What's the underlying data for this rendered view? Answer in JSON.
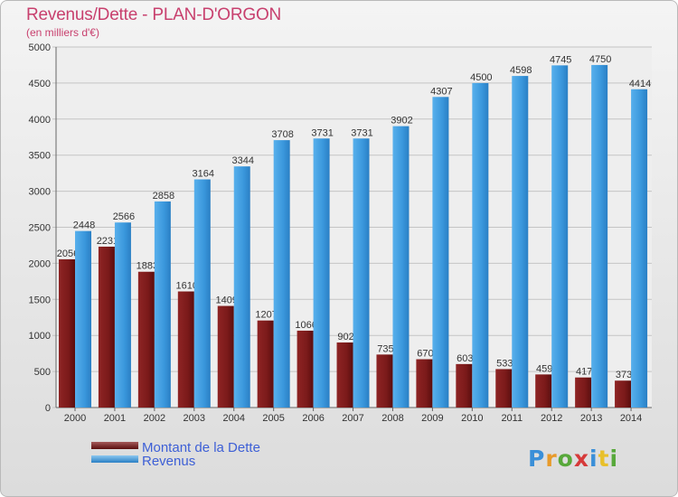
{
  "title": "Revenus/Dette - PLAN-D'ORGON",
  "subtitle": "(en milliers d'€)",
  "logo_text": "Proxiti",
  "colors": {
    "dette": "#7b1a1a",
    "revenus": "#3a97dc",
    "title": "#c8406e",
    "legend_text": "#3d5fd6"
  },
  "chart_data": {
    "type": "bar",
    "categories": [
      "2000",
      "2001",
      "2002",
      "2003",
      "2004",
      "2005",
      "2006",
      "2007",
      "2008",
      "2009",
      "2010",
      "2011",
      "2012",
      "2013",
      "2014"
    ],
    "series": [
      {
        "name": "Montant de la Dette",
        "values": [
          2056,
          2231,
          1883,
          1610,
          1409,
          1207,
          1066,
          902,
          735,
          670,
          603,
          533,
          459,
          417,
          373
        ]
      },
      {
        "name": "Revenus",
        "values": [
          2448,
          2566,
          2858,
          3164,
          3344,
          3708,
          3731,
          3731,
          3902,
          4307,
          4500,
          4598,
          4745,
          4750,
          4414
        ]
      }
    ],
    "data_labels": [
      [
        "2056",
        "2231",
        "1883",
        "1610",
        "1409",
        "1207",
        "1066",
        "902",
        "735",
        "670",
        "603",
        "533",
        "459",
        "417",
        "373"
      ],
      [
        "2448",
        "2566",
        "2858",
        "3164",
        "3344",
        "3708",
        "3731",
        "3731",
        "3902",
        "4307",
        "4500",
        "4598",
        "4745",
        "4750",
        "4414"
      ]
    ],
    "yticks": [
      0,
      500,
      1000,
      1500,
      2000,
      2500,
      3000,
      3500,
      4000,
      4500,
      5000
    ],
    "ylim": [
      0,
      5000
    ],
    "grid": true,
    "legend_position": "bottom-left",
    "xlabel": "",
    "ylabel": ""
  }
}
